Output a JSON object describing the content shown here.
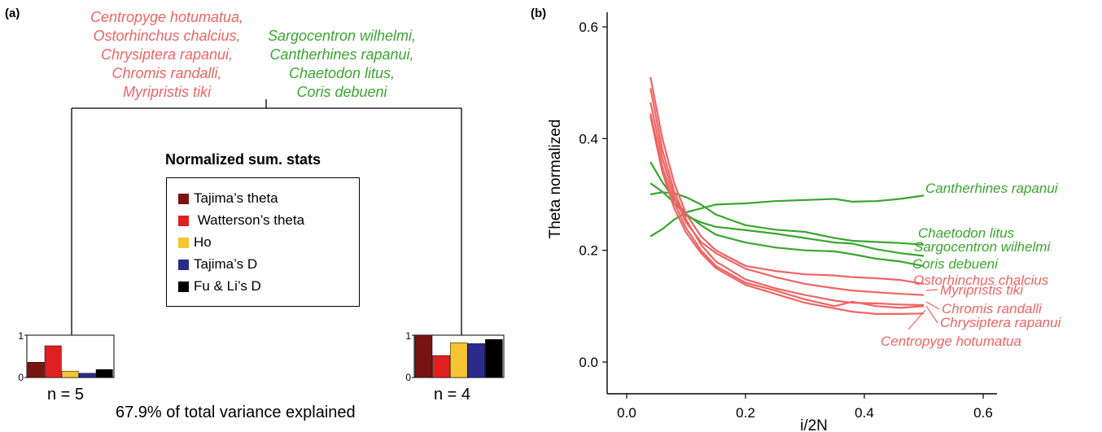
{
  "panel_a": {
    "label": "(a)",
    "left_group": {
      "species": [
        "Centropyge hotumatua,",
        "Ostorhinchus chalcius,",
        "Chrysiptera rapanui,",
        "Chromis randalli,",
        "Myripristis tiki"
      ],
      "n_label": "n = 5"
    },
    "right_group": {
      "species": [
        "Sargocentron wilhelmi,",
        "Cantherhines rapanui,",
        "Chaetodon litus,",
        "Coris debueni"
      ],
      "n_label": "n = 4"
    },
    "legend": {
      "title": "Normalized sum. stats",
      "items": [
        {
          "label": "Tajima’s theta",
          "color": "#7a1414"
        },
        {
          "label": " Watterson’s theta",
          "color": "#e02020"
        },
        {
          "label": "Ho",
          "color": "#f5c431"
        },
        {
          "label": "Tajima’s D",
          "color": "#2b2b8c"
        },
        {
          "label": "Fu & Li’s D",
          "color": "#000000"
        }
      ]
    },
    "variance_text": "67.9% of total variance explained",
    "colors": {
      "left_group": "#f06464",
      "right_group": "#3aa52e"
    }
  },
  "chart_data": [
    {
      "type": "bar",
      "categories": [
        "Tajima’s theta",
        "Watterson’s theta",
        "Ho",
        "Tajima’s D",
        "Fu & Li’s D"
      ],
      "values": [
        0.36,
        0.75,
        0.15,
        0.1,
        0.19
      ],
      "ylim": [
        0,
        1
      ],
      "yticks": [
        "0",
        "1"
      ]
    },
    {
      "type": "bar",
      "categories": [
        "Tajima’s theta",
        "Watterson’s theta",
        "Ho",
        "Tajima’s D",
        "Fu & Li’s D"
      ],
      "values": [
        1.0,
        0.52,
        0.82,
        0.8,
        0.9
      ],
      "ylim": [
        0,
        1
      ],
      "yticks": [
        "0",
        "1"
      ]
    },
    {
      "type": "line",
      "panel_label": "(b)",
      "xlabel": "i/2N",
      "ylabel": "Theta normalized",
      "xlim": [
        -0.02,
        0.62
      ],
      "ylim": [
        -0.02,
        0.62
      ],
      "xticks": [
        "0.0",
        "0.2",
        "0.4",
        "0.6"
      ],
      "yticks": [
        "0.0",
        "0.2",
        "0.4",
        "0.6"
      ],
      "x": [
        0.04,
        0.06,
        0.08,
        0.1,
        0.125,
        0.15,
        0.2,
        0.25,
        0.3,
        0.35,
        0.38,
        0.42,
        0.46,
        0.5
      ],
      "series": [
        {
          "name": "Cantherhines rapanui",
          "group": "green",
          "values": [
            0.225,
            0.238,
            0.255,
            0.268,
            0.275,
            0.282,
            0.284,
            0.288,
            0.29,
            0.292,
            0.287,
            0.288,
            0.292,
            0.298
          ]
        },
        {
          "name": "Chaetodon litus",
          "group": "green",
          "values": [
            0.3,
            0.304,
            0.302,
            0.295,
            0.282,
            0.264,
            0.245,
            0.237,
            0.233,
            0.222,
            0.217,
            0.215,
            0.213,
            0.21
          ]
        },
        {
          "name": "Sargocentron wilhelmi",
          "group": "green",
          "values": [
            0.32,
            0.305,
            0.285,
            0.262,
            0.25,
            0.242,
            0.236,
            0.23,
            0.222,
            0.214,
            0.212,
            0.202,
            0.195,
            0.19
          ]
        },
        {
          "name": "Coris debueni",
          "group": "green",
          "values": [
            0.358,
            0.322,
            0.292,
            0.265,
            0.245,
            0.228,
            0.214,
            0.205,
            0.2,
            0.198,
            0.193,
            0.185,
            0.18,
            0.172
          ]
        },
        {
          "name": "Ostorhinchus chalcius",
          "group": "red",
          "values": [
            0.51,
            0.4,
            0.32,
            0.265,
            0.225,
            0.2,
            0.172,
            0.163,
            0.157,
            0.155,
            0.152,
            0.15,
            0.147,
            0.14
          ]
        },
        {
          "name": "Myripristis tiki",
          "group": "red",
          "values": [
            0.465,
            0.365,
            0.295,
            0.25,
            0.215,
            0.195,
            0.167,
            0.152,
            0.14,
            0.132,
            0.128,
            0.125,
            0.122,
            0.12
          ]
        },
        {
          "name": "Chromis randalli",
          "group": "red",
          "values": [
            0.49,
            0.38,
            0.305,
            0.255,
            0.21,
            0.18,
            0.148,
            0.132,
            0.12,
            0.11,
            0.106,
            0.105,
            0.103,
            0.102
          ]
        },
        {
          "name": "Chrysiptera rapanui",
          "group": "red",
          "values": [
            0.445,
            0.35,
            0.285,
            0.24,
            0.2,
            0.172,
            0.142,
            0.128,
            0.112,
            0.1,
            0.108,
            0.1,
            0.097,
            0.1
          ]
        },
        {
          "name": "Centropyge hotumatua",
          "group": "red",
          "values": [
            0.44,
            0.34,
            0.275,
            0.232,
            0.195,
            0.168,
            0.138,
            0.122,
            0.106,
            0.096,
            0.09,
            0.086,
            0.086,
            0.087
          ]
        }
      ]
    }
  ]
}
